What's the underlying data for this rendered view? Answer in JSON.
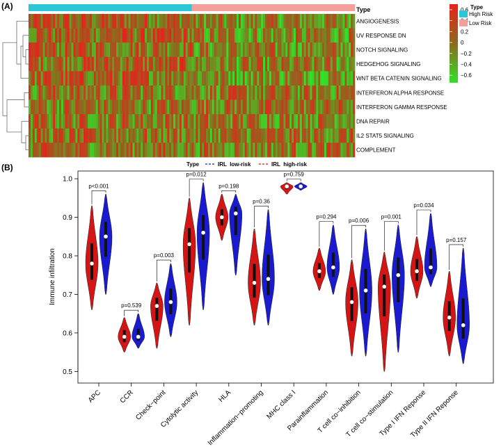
{
  "panels": {
    "a_label": "(A)",
    "b_label": "(B)"
  },
  "colors": {
    "high_risk": "#2cc6d6",
    "low_risk": "#f4a09a",
    "heat_high": "#e8211c",
    "heat_mid": "#8c6a1e",
    "heat_low": "#32e028",
    "violin_low_risk": "#1a1acf",
    "violin_high_risk": "#d41515"
  },
  "chart_data": [
    {
      "type": "heatmap",
      "annotation_label": "Type",
      "rows": [
        "ANGIOGENESIS",
        "UV RESPONSE DN",
        "NOTCH SIGNALING",
        "HEDGEHOG SIGNALING",
        "WNT BETA CATENIN SIGNALING",
        "INTERFERON ALPHA RESPONSE",
        "INTERFERON GAMMA RESPONSE",
        "DNA REPAIR",
        "IL2 STAT5 SIGNALING",
        "COMPLEMENT"
      ],
      "column_groups": [
        {
          "name": "High Risk",
          "columns": 80
        },
        {
          "name": "Low Risk",
          "columns": 80
        }
      ],
      "group_mean_z": {
        "High Risk": [
          0.15,
          0.15,
          0.12,
          0.12,
          0.12,
          0.02,
          0.0,
          0.02,
          0.02,
          0.02
        ],
        "Low Risk": [
          -0.15,
          -0.15,
          -0.12,
          -0.12,
          -0.12,
          -0.02,
          0.0,
          -0.02,
          -0.02,
          -0.02
        ]
      },
      "legend_scale": {
        "ticks": [
          "0.6",
          "0.4",
          "0.2",
          "0",
          "−0.2",
          "−0.4",
          "−0.6"
        ],
        "range": [
          -0.7,
          0.7
        ]
      },
      "legend_type": {
        "title": "Type",
        "entries": [
          "High Risk",
          "Low Risk"
        ]
      }
    },
    {
      "type": "violin",
      "ylabel": "Immune infiltration",
      "ylim": [
        0.47,
        1.02
      ],
      "yticks": [
        "0.5",
        "0.6",
        "0.7",
        "0.8",
        "0.9",
        "1.0"
      ],
      "legend": {
        "title": "Type",
        "entries": [
          "IRL  low-risk",
          "IRL  high-risk"
        ]
      },
      "categories": [
        "APC",
        "CCR",
        "Check−point",
        "Cytolytic activity",
        "HLA",
        "Inflammation−promoting",
        "MHC class I",
        "Parainflammation",
        "T cell co−inhibition",
        "T cell co−stimulation",
        "Type I IFN Reponse",
        "Type II IFN Reponse"
      ],
      "pvalues": [
        "p<0.001",
        "p=0.539",
        "p=0.003",
        "p=0.012",
        "p=0.198",
        "p=0.36",
        "p=0.759",
        "p=0.294",
        "p=0.006",
        "p=0.001",
        "p=0.034",
        "p=0.157"
      ],
      "series": [
        {
          "name": "IRL  high-risk",
          "medians": [
            0.78,
            0.59,
            0.67,
            0.83,
            0.9,
            0.73,
            0.98,
            0.76,
            0.68,
            0.72,
            0.76,
            0.64
          ],
          "mins": [
            0.66,
            0.55,
            0.56,
            0.62,
            0.84,
            0.62,
            0.96,
            0.71,
            0.54,
            0.5,
            0.69,
            0.54
          ],
          "maxs": [
            0.93,
            0.64,
            0.73,
            0.95,
            0.96,
            0.87,
            0.99,
            0.82,
            0.79,
            0.81,
            0.85,
            0.76
          ]
        },
        {
          "name": "IRL  low-risk",
          "medians": [
            0.85,
            0.59,
            0.68,
            0.86,
            0.91,
            0.74,
            0.98,
            0.77,
            0.71,
            0.75,
            0.77,
            0.62
          ],
          "mins": [
            0.7,
            0.56,
            0.59,
            0.66,
            0.75,
            0.62,
            0.97,
            0.7,
            0.54,
            0.55,
            0.72,
            0.52
          ],
          "maxs": [
            0.96,
            0.65,
            0.78,
            0.99,
            0.96,
            0.92,
            0.99,
            0.88,
            0.87,
            0.88,
            0.91,
            0.82
          ]
        }
      ]
    }
  ]
}
